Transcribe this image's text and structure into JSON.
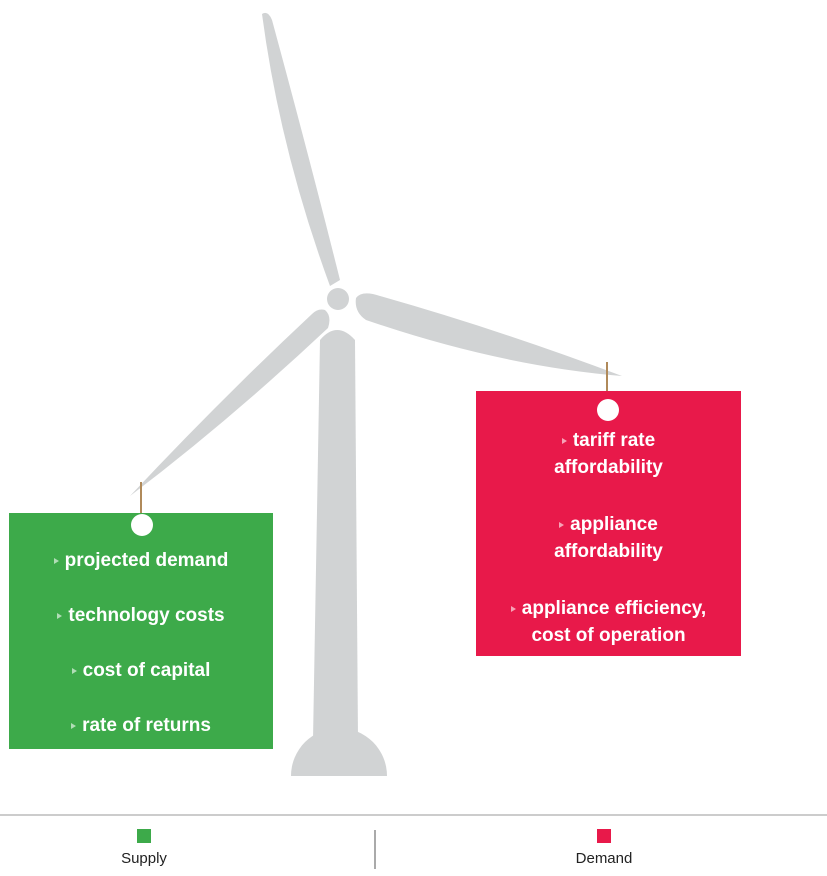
{
  "supply": {
    "items": [
      {
        "lines": [
          "projected demand"
        ]
      },
      {
        "lines": [
          "technology costs"
        ]
      },
      {
        "lines": [
          "cost of capital"
        ]
      },
      {
        "lines": [
          "rate of returns"
        ]
      }
    ]
  },
  "demand": {
    "items": [
      {
        "lines": [
          "tariff rate",
          "affordability"
        ]
      },
      {
        "lines": [
          "appliance",
          "affordability"
        ]
      },
      {
        "lines": [
          "appliance efficiency,",
          "cost of operation"
        ]
      }
    ]
  },
  "legend": {
    "items": [
      {
        "label": "Supply",
        "color": "#3daa4a"
      },
      {
        "label": "Demand",
        "color": "#e8194a"
      }
    ]
  }
}
